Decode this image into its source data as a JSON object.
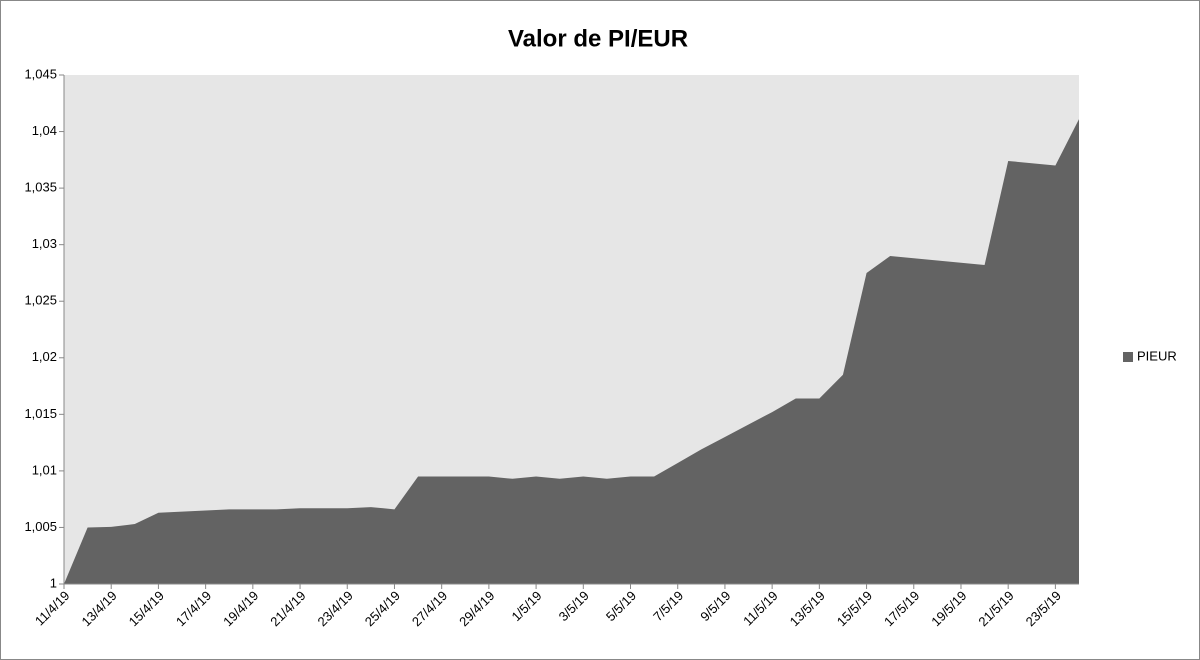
{
  "chart_data": {
    "type": "area",
    "title": "Valor de PI/EUR",
    "categories": [
      "11/4/19",
      null,
      "13/4/19",
      null,
      "15/4/19",
      null,
      "17/4/19",
      null,
      "19/4/19",
      null,
      "21/4/19",
      null,
      "23/4/19",
      null,
      "25/4/19",
      null,
      "27/4/19",
      null,
      "29/4/19",
      null,
      "1/5/19",
      null,
      "3/5/19",
      null,
      "5/5/19",
      null,
      "7/5/19",
      null,
      "9/5/19",
      null,
      "11/5/19",
      null,
      "13/5/19",
      null,
      "15/5/19",
      null,
      "17/5/19",
      null,
      "19/5/19",
      null,
      "21/5/19",
      null,
      "23/5/19",
      null
    ],
    "series": [
      {
        "name": "PIEUR",
        "color": "#636363",
        "values": [
          1.0,
          1.005,
          1.00505,
          1.0053,
          1.0063,
          1.0064,
          1.0065,
          1.0066,
          1.0066,
          1.0066,
          1.0067,
          1.0067,
          1.0067,
          1.0068,
          1.0066,
          1.0095,
          1.0095,
          1.0095,
          1.0095,
          1.0093,
          1.0095,
          1.0093,
          1.0095,
          1.0093,
          1.0095,
          1.0095,
          1.0107,
          1.0119,
          1.013,
          1.0141,
          1.0152,
          1.0164,
          1.0164,
          1.0185,
          1.0275,
          1.029,
          1.0288,
          1.0286,
          1.0284,
          1.0282,
          1.0374,
          1.0372,
          1.037,
          1.0411
        ]
      }
    ],
    "ylim": [
      1,
      1.045
    ],
    "yticks": [
      1,
      {
        "value": 1.005,
        "label": "1,005"
      },
      {
        "value": 1.01,
        "label": "1,01"
      },
      {
        "value": 1.015,
        "label": "1,015"
      },
      {
        "value": 1.02,
        "label": "1,02"
      },
      {
        "value": 1.025,
        "label": "1,025"
      },
      {
        "value": 1.03,
        "label": "1,03"
      },
      {
        "value": 1.035,
        "label": "1,035"
      },
      {
        "value": 1.04,
        "label": "1,04"
      },
      {
        "value": 1.045,
        "label": "1,045"
      }
    ],
    "legend": "right",
    "plot_background": "#e6e6e6"
  }
}
